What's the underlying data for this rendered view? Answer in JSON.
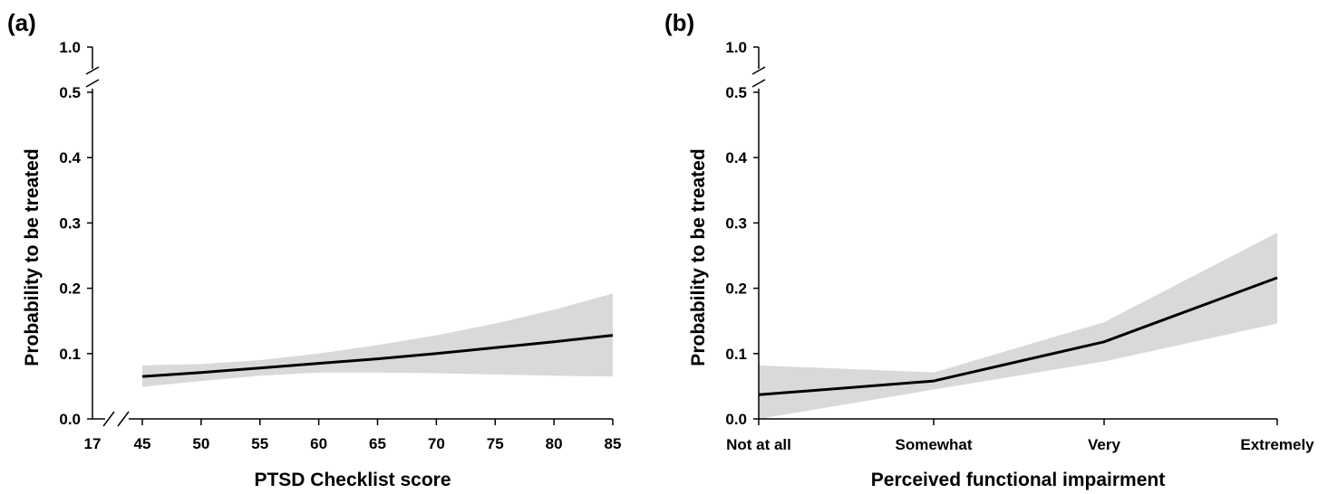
{
  "chart_data": [
    {
      "type": "line",
      "panel_label": "(a)",
      "xlabel": "PTSD Checklist score",
      "ylabel": "Probability to be treated",
      "x_break": true,
      "x_break_tick": "17",
      "x_ticks": [
        "45",
        "50",
        "55",
        "60",
        "65",
        "70",
        "75",
        "80",
        "85"
      ],
      "xlim": [
        45,
        85
      ],
      "y_ticks": [
        "0.0",
        "0.1",
        "0.2",
        "0.3",
        "0.4",
        "0.5"
      ],
      "y_break_tick": "1.0",
      "ylim": [
        0,
        0.5
      ],
      "grid": false,
      "band_color": "#d9d9d9",
      "line_color": "#000000",
      "series": [
        {
          "x": [
            45,
            50,
            55,
            60,
            65,
            70,
            75,
            80,
            85
          ],
          "y": [
            0.065,
            0.071,
            0.078,
            0.085,
            0.092,
            0.1,
            0.109,
            0.118,
            0.128
          ],
          "lower": [
            0.049,
            0.058,
            0.066,
            0.071,
            0.071,
            0.07,
            0.068,
            0.066,
            0.065
          ],
          "upper": [
            0.082,
            0.084,
            0.09,
            0.1,
            0.113,
            0.128,
            0.146,
            0.167,
            0.192
          ]
        }
      ]
    },
    {
      "type": "line",
      "panel_label": "(b)",
      "xlabel": "Perceived functional impairment",
      "ylabel": "Probability to be treated",
      "x_break": false,
      "categories": [
        "Not at all",
        "Somewhat",
        "Very",
        "Extremely"
      ],
      "y_ticks": [
        "0.0",
        "0.1",
        "0.2",
        "0.3",
        "0.4",
        "0.5"
      ],
      "y_break_tick": "1.0",
      "ylim": [
        0,
        0.5
      ],
      "grid": false,
      "band_color": "#d9d9d9",
      "line_color": "#000000",
      "series": [
        {
          "y": [
            0.037,
            0.058,
            0.118,
            0.216
          ],
          "lower": [
            0.0,
            0.045,
            0.088,
            0.146
          ],
          "upper": [
            0.082,
            0.071,
            0.148,
            0.285
          ]
        }
      ]
    }
  ]
}
